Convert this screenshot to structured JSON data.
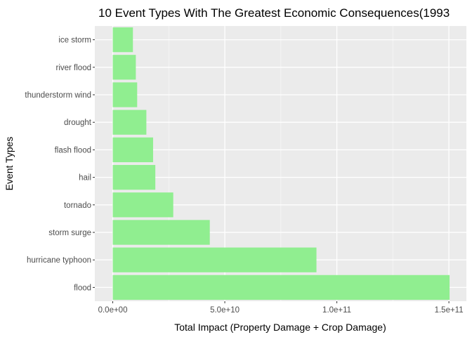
{
  "chart_data": {
    "type": "bar",
    "orientation": "horizontal",
    "title": "10 Event Types With The Greatest Economic Consequences(1993",
    "xlabel": "Total Impact (Property Damage + Crop Damage)",
    "ylabel": "Event Types",
    "categories": [
      "flood",
      "hurricane typhoon",
      "storm surge",
      "tornado",
      "hail",
      "flash flood",
      "drought",
      "thunderstorm wind",
      "river flood",
      "ice storm"
    ],
    "values": [
      150300000000,
      90900000000,
      43300000000,
      27000000000,
      19000000000,
      18000000000,
      15000000000,
      10900000000,
      10300000000,
      9000000000
    ],
    "xlim": [
      -8000000000,
      157800000000
    ],
    "xticks": [
      0,
      50000000000,
      100000000000,
      150000000000
    ],
    "xtick_labels": [
      "0.0e+00",
      "5.0e+10",
      "1.0e+11",
      "1.5e+11"
    ],
    "grid": true,
    "legend": "none",
    "colors": {
      "bar": "#90ee90",
      "panel": "#ebebeb",
      "grid_major": "#ffffff",
      "grid_minor": "#f7f7f7"
    }
  }
}
